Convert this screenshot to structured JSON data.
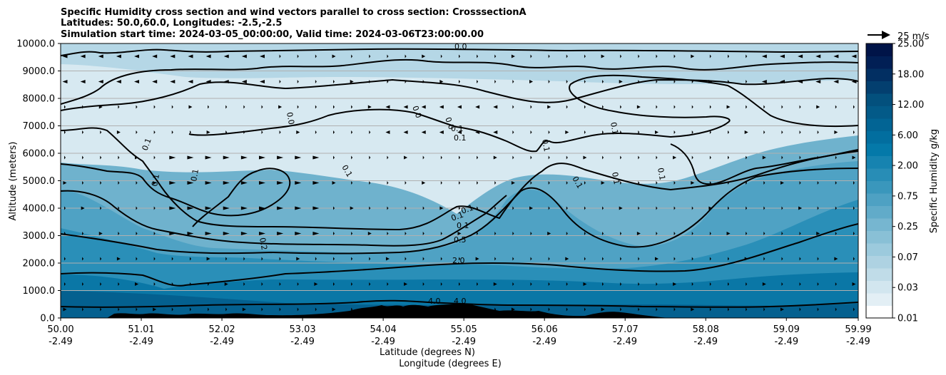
{
  "chart_data": {
    "type": "contour",
    "title_lines": [
      "Specific Humidity cross section and wind vectors parallel to cross section: CrosssectionA",
      "Latitudes: 50.0,60.0, Longitudes: -2.5,-2.5",
      "Simulation start time: 2024-03-05_00:00:00, Valid time: 2024-03-06T23:00:00.00"
    ],
    "xlabel_lat": "Latitude (degrees N)",
    "xlabel_lon": "Longitude (degrees E)",
    "ylabel": "Altitude (meters)",
    "xlim": [
      50.0,
      59.99
    ],
    "ylim": [
      0,
      10000
    ],
    "x_ticks": [
      {
        "lat": "50.00",
        "lon": "-2.49"
      },
      {
        "lat": "51.01",
        "lon": "-2.49"
      },
      {
        "lat": "52.02",
        "lon": "-2.49"
      },
      {
        "lat": "53.03",
        "lon": "-2.49"
      },
      {
        "lat": "54.04",
        "lon": "-2.49"
      },
      {
        "lat": "55.05",
        "lon": "-2.49"
      },
      {
        "lat": "56.06",
        "lon": "-2.49"
      },
      {
        "lat": "57.07",
        "lon": "-2.49"
      },
      {
        "lat": "58.08",
        "lon": "-2.49"
      },
      {
        "lat": "59.09",
        "lon": "-2.49"
      },
      {
        "lat": "59.99",
        "lon": "-2.49"
      }
    ],
    "y_ticks": [
      "0.0",
      "1000.0",
      "2000.0",
      "3000.0",
      "4000.0",
      "5000.0",
      "6000.0",
      "7000.0",
      "8000.0",
      "9000.0",
      "10000.0"
    ],
    "colorbar": {
      "label": "Specific Humidity g/kg",
      "tick_labels": [
        "0.01",
        "0.03",
        "0.07",
        "0.25",
        "0.75",
        "2.00",
        "6.00",
        "12.00",
        "18.00",
        "25.00"
      ],
      "colors": [
        "#ffffff",
        "#e3eff5",
        "#d2e6ef",
        "#c0dce8",
        "#aed2e2",
        "#9ccadd",
        "#89c0d6",
        "#76b6d0",
        "#61abc9",
        "#4ea1c3",
        "#3a97bc",
        "#288db6",
        "#1683b0",
        "#0479a9",
        "#026e9f",
        "#026494",
        "#035a88",
        "#03507d",
        "#033f6f",
        "#022f62",
        "#011f55",
        "#001448"
      ]
    },
    "wind_key": {
      "label": "25 m/s",
      "value": 25
    },
    "contour_levels": [
      "0.0",
      "0.1",
      "0.2",
      "0.5",
      "2.0",
      "4.0"
    ],
    "contour_labels": [
      "0.0",
      "0.0",
      "0.0",
      "0.0",
      "0.1",
      "0.1",
      "0.1",
      "0.1",
      "0.1",
      "0.1",
      "0.1",
      "0.1",
      "0.1",
      "0.1",
      "0.1",
      "0.1",
      "0.1",
      "0.1",
      "0.2",
      "0.5",
      "2.0",
      "4.0",
      "4.0"
    ],
    "grid": "horizontal"
  }
}
